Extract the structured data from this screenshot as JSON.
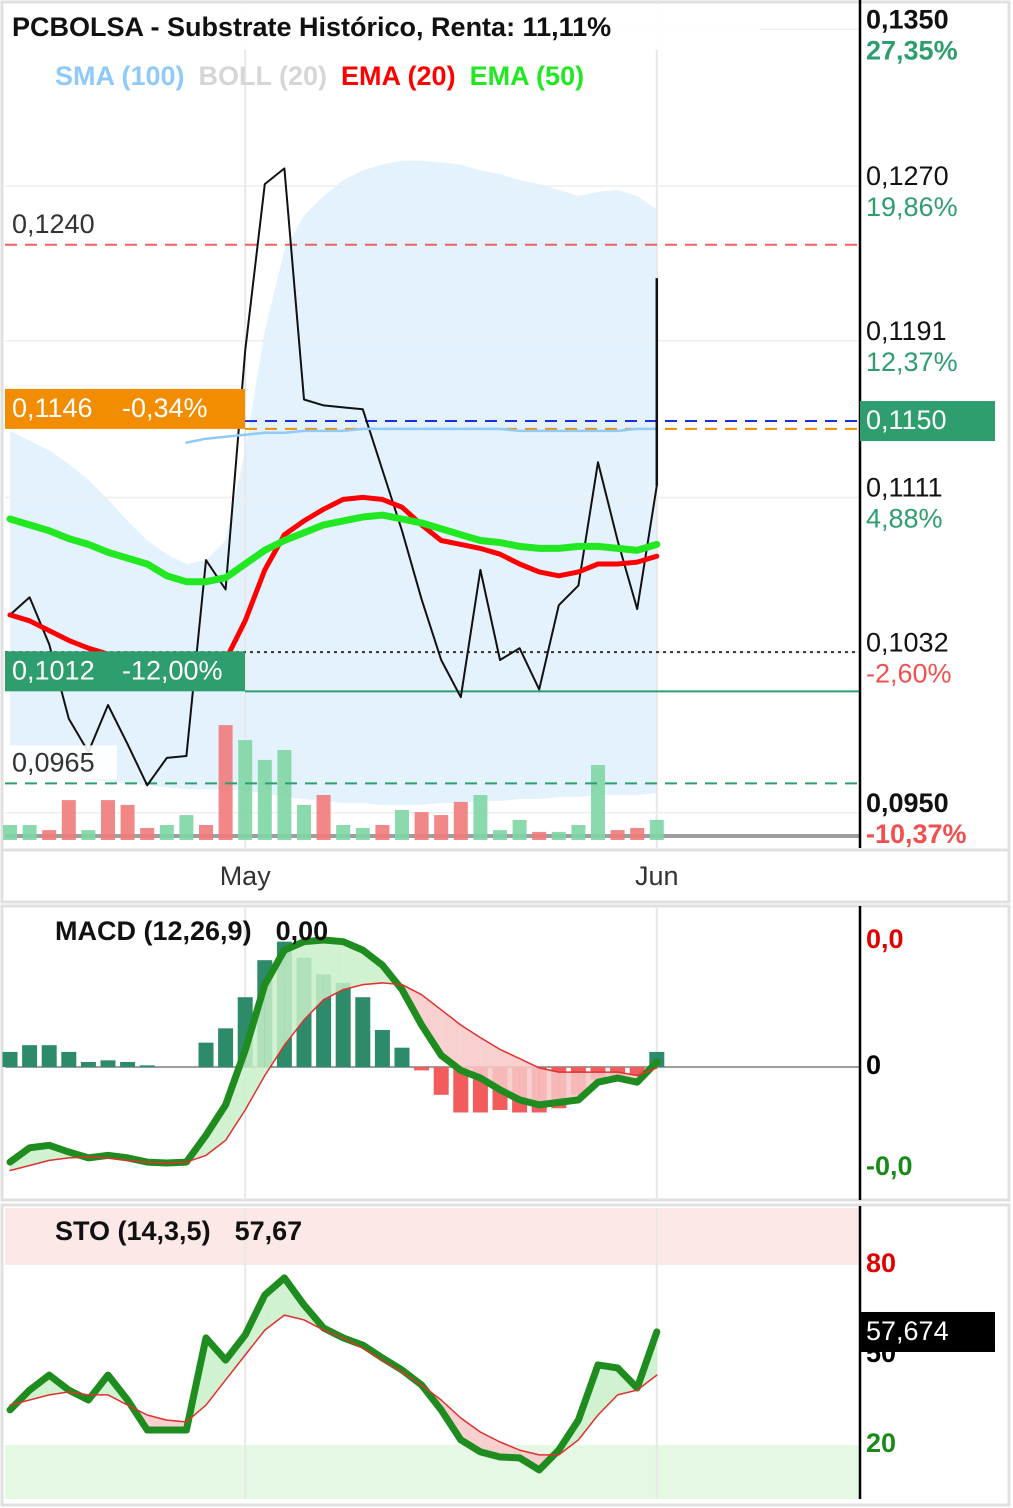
{
  "chart_data": [
    {
      "type": "line",
      "title": "PCBOLSA - Substrate Histórico, Renta: 11,11%",
      "categories": [
        null,
        null,
        null,
        null,
        null,
        null,
        null,
        null,
        null,
        null,
        null,
        null,
        "May",
        null,
        null,
        null,
        null,
        null,
        null,
        null,
        null,
        null,
        null,
        null,
        null,
        null,
        null,
        null,
        null,
        null,
        null,
        null,
        null,
        "Jun"
      ],
      "ylim": [
        0.0932,
        0.1365
      ],
      "yticks": [
        {
          "value": 0.135,
          "label": "0,1350",
          "change": "27,35%"
        },
        {
          "value": 0.127,
          "label": "0,1270",
          "change": "19,86%"
        },
        {
          "value": 0.1191,
          "label": "0,1191",
          "change": "12,37%"
        },
        {
          "value": 0.1111,
          "label": "0,1111",
          "change": "4,88%"
        },
        {
          "value": 0.1032,
          "label": "0,1032",
          "change": "-2,60%"
        },
        {
          "value": 0.095,
          "label": "0,0950",
          "change": "-10,37%"
        }
      ],
      "grid": true,
      "series": [
        {
          "values": [
            0.1051,
            0.106,
            0.1036,
            0.0998,
            0.0981,
            0.1005,
            0.0985,
            0.0964,
            0.0978,
            0.0979,
            0.1079,
            0.1064,
            0.1186,
            0.1271,
            0.1279,
            0.1161,
            0.1158,
            0.1157,
            0.1156,
            0.1125,
            0.1094,
            0.1059,
            0.1028,
            0.1009,
            0.1074,
            0.1028,
            0.1034,
            0.1013,
            0.1056,
            0.1066,
            0.1129,
            0.1089,
            0.1054,
            0.1117
          ],
          "color": "#111111",
          "width": 2
        },
        {
          "name": "SMA (100)",
          "color": "#90caf9",
          "width": 2.5,
          "values": [
            null,
            null,
            null,
            null,
            null,
            null,
            null,
            null,
            null,
            0.1139,
            0.1141,
            0.1142,
            0.1143,
            0.1144,
            0.1144,
            0.1145,
            0.1145,
            0.1145,
            0.1146,
            0.1146,
            0.1146,
            0.1146,
            0.1146,
            0.1146,
            0.1146,
            0.1146,
            0.1145,
            0.1145,
            0.1145,
            0.1145,
            0.1145,
            0.1145,
            0.1146,
            0.1146
          ]
        },
        {
          "name": "BOLL (20)",
          "color": "#d6d6d6",
          "fill": "#e3f2fd",
          "values": [
            0.1145,
            0.114,
            0.1135,
            0.1128,
            0.112,
            0.111,
            0.1099,
            0.1089,
            0.1082,
            0.1077,
            0.1079,
            0.1089,
            0.1135,
            0.1196,
            0.1237,
            0.1255,
            0.1265,
            0.1273,
            0.1278,
            0.1281,
            0.1283,
            0.1283,
            0.1282,
            0.1281,
            0.1278,
            0.1276,
            0.1273,
            0.1271,
            0.1268,
            0.1265,
            0.1267,
            0.1268,
            0.1265,
            0.1258
          ],
          "lower": [
            0.0975,
            0.0973,
            0.0971,
            0.0969,
            0.0967,
            0.0966,
            0.0965,
            0.0964,
            0.0963,
            0.0962,
            0.0962,
            0.0962,
            0.0961,
            0.096,
            0.0958,
            0.0957,
            0.0956,
            0.0955,
            0.0955,
            0.0954,
            0.0954,
            0.0954,
            0.0955,
            0.0955,
            0.0956,
            0.0956,
            0.0957,
            0.0957,
            0.0958,
            0.0958,
            0.0959,
            0.0959,
            0.0959,
            0.096
          ]
        },
        {
          "name": "EMA (20)",
          "color": "#ff0000",
          "width": 5,
          "values": [
            0.1051,
            0.1048,
            0.1043,
            0.1038,
            0.1034,
            0.1031,
            0.1028,
            0.1025,
            0.1025,
            0.1025,
            0.1025,
            0.1028,
            0.1048,
            0.1074,
            0.1092,
            0.1099,
            0.1105,
            0.111,
            0.1111,
            0.111,
            0.1106,
            0.1097,
            0.1089,
            0.1087,
            0.1085,
            0.1082,
            0.1077,
            0.1073,
            0.1071,
            0.1073,
            0.1077,
            0.1077,
            0.1078,
            0.1081
          ]
        },
        {
          "name": "EMA (50)",
          "color": "#22e822",
          "width": 7,
          "values": [
            0.11,
            0.1097,
            0.1094,
            0.109,
            0.1087,
            0.1083,
            0.108,
            0.1077,
            0.1071,
            0.1068,
            0.1068,
            0.107,
            0.1077,
            0.1084,
            0.1089,
            0.1093,
            0.1097,
            0.1099,
            0.1101,
            0.1102,
            0.11,
            0.1098,
            0.1095,
            0.1092,
            0.1089,
            0.1088,
            0.1086,
            0.1085,
            0.1085,
            0.1086,
            0.1086,
            0.1085,
            0.1084,
            0.1087
          ]
        }
      ],
      "last_high": 0.1223,
      "volume": {
        "vlim": [
          0,
          100
        ],
        "up_color": "#7ed6a4",
        "down_color": "#f07a7a",
        "values": [
          5,
          5,
          3.3,
          13.3,
          3.3,
          13.3,
          11.7,
          4,
          5,
          8.3,
          5,
          38.3,
          33.3,
          26.7,
          30,
          11.7,
          15,
          5,
          4,
          5,
          10,
          9.3,
          8.3,
          12.7,
          15,
          3.3,
          6.7,
          2.7,
          2.7,
          5,
          25,
          3.3,
          4,
          6.7
        ],
        "directions": [
          "up",
          "up",
          "down",
          "down",
          "up",
          "down",
          "down",
          "down",
          "up",
          "up",
          "down",
          "down",
          "up",
          "up",
          "up",
          "up",
          "down",
          "up",
          "up",
          "down",
          "up",
          "down",
          "down",
          "down",
          "up",
          "up",
          "up",
          "down",
          "up",
          "up",
          "up",
          "down",
          "down",
          "up"
        ]
      },
      "levels": [
        {
          "value": 0.124,
          "label": "0,1240",
          "color": "#f06060",
          "style": "dashed"
        },
        {
          "value": 0.0965,
          "label": "0,0965",
          "color": "#2e9e6e",
          "style": "dashed"
        },
        {
          "value": 0.1032,
          "color": "#333333",
          "style": "dotted"
        },
        {
          "value": 0.1146,
          "label": "0,1146",
          "change": "-0,34%",
          "color": "#f28c00",
          "style": "dashed"
        },
        {
          "value": 0.1012,
          "label": "0,1012",
          "change": "-12,00%",
          "color": "#2e9e6e",
          "style": "solid"
        }
      ],
      "current": {
        "value": 0.115,
        "label": "0,1150",
        "color": "#2e9e6e",
        "line_color": "#1a2fe0"
      }
    },
    {
      "type": "line",
      "title": "MACD (12,26,9)",
      "header_value": {
        "value": 6e-05,
        "label": "0,00"
      },
      "ylim": [
        -0.00158,
        0.00189
      ],
      "yticks": [
        {
          "value": 0.0015,
          "label": "0,0"
        },
        0,
        {
          "value": -0.0012,
          "label": "-0,0"
        }
      ],
      "ytick_colors": [
        "#e00000",
        "#000000",
        "#1a8a1a"
      ],
      "zero_line": true,
      "series": [
        {
          "style": "bar",
          "up_color": "#2e8b6a",
          "down_color": "#f25c5c",
          "values": [
            0.00018,
            0.00026,
            0.00026,
            0.00018,
            6e-05,
            8e-05,
            6e-05,
            2e-05,
            0,
            0,
            0.00029,
            0.00046,
            0.00083,
            0.00127,
            0.00149,
            0.0013,
            0.0011,
            0.001,
            0.00083,
            0.00044,
            0.00023,
            -4e-05,
            -0.00033,
            -0.00054,
            -0.00054,
            -0.00051,
            -0.00054,
            -0.00054,
            -0.00049,
            -0.00033,
            -0.00015,
            -0.0001,
            -0.0001,
            0.00018
          ]
        },
        {
          "color": "#1e8c1e",
          "width": 7,
          "values": [
            -0.00113,
            -0.00096,
            -0.00093,
            -0.00101,
            -0.00108,
            -0.00105,
            -0.00108,
            -0.00113,
            -0.00114,
            -0.00113,
            -0.00081,
            -0.00045,
            0.0002,
            0.00098,
            0.00139,
            0.00149,
            0.00151,
            0.00149,
            0.00139,
            0.00121,
            0.00092,
            0.0005,
            0.00014,
            -4e-05,
            -0.00013,
            -0.00027,
            -0.00039,
            -0.00045,
            -0.00042,
            -0.00039,
            -0.00018,
            -0.00013,
            -0.00018,
            6e-05
          ]
        },
        {
          "color": "#e03030",
          "width": 1.5,
          "values": [
            -0.00123,
            -0.00117,
            -0.00111,
            -0.00108,
            -0.00107,
            -0.00108,
            -0.00111,
            -0.00113,
            -0.00114,
            -0.00113,
            -0.00105,
            -0.00087,
            -0.00051,
            -0.0001,
            0.00026,
            0.00056,
            0.0008,
            0.00092,
            0.00098,
            0.001,
            0.00098,
            0.00086,
            0.00068,
            0.0005,
            0.00035,
            0.00021,
            0.0001,
            -1e-05,
            -6e-05,
            -6e-05,
            -6e-05,
            -6e-05,
            -0.0001,
            -1e-05
          ]
        }
      ],
      "fill_between": [
        1,
        2
      ],
      "fill_colors": [
        "#c8f0c8",
        "#f8c8c8"
      ]
    },
    {
      "type": "line",
      "title": "STO (14,3,5)",
      "header_value": {
        "value": 57.67,
        "label": "57,67"
      },
      "ylim": [
        2,
        99
      ],
      "yticks": [
        80,
        50,
        20
      ],
      "ytick_colors": [
        "#e00000",
        "#000000",
        "#1a8a1a"
      ],
      "zones": [
        {
          "from": 80,
          "to": 99,
          "color": "#fde8e8"
        },
        {
          "from": 2,
          "to": 20,
          "color": "#e4f8e4"
        }
      ],
      "series": [
        {
          "color": "#1e8c1e",
          "width": 7,
          "values": [
            31.7,
            38.3,
            43.3,
            38.3,
            35,
            43.3,
            35,
            25,
            25,
            25,
            55.7,
            48.3,
            56.7,
            70,
            75.7,
            66.7,
            59,
            55.7,
            53.3,
            49,
            45,
            40,
            31.7,
            21.7,
            17.7,
            16,
            15.7,
            11.7,
            18.3,
            28.3,
            46.7,
            45.7,
            39,
            57.7
          ]
        },
        {
          "color": "#e03030",
          "width": 1.5,
          "values": [
            33.3,
            35,
            36.7,
            37.7,
            36.7,
            36.7,
            33.3,
            30,
            28.3,
            27.7,
            33.3,
            41.7,
            50,
            58.3,
            63.3,
            61.7,
            58.3,
            55.7,
            52.3,
            48.3,
            44.3,
            40,
            35,
            29,
            24.3,
            21,
            18.3,
            16.7,
            16.7,
            21.7,
            30,
            36.7,
            38.3,
            43.3
          ]
        }
      ],
      "fill_between": [
        0,
        1
      ],
      "fill_colors": [
        "#c8f0c8",
        "#f8c8c8"
      ],
      "current": {
        "value": 57.674,
        "label": "57,674",
        "color": "#000000"
      }
    }
  ]
}
